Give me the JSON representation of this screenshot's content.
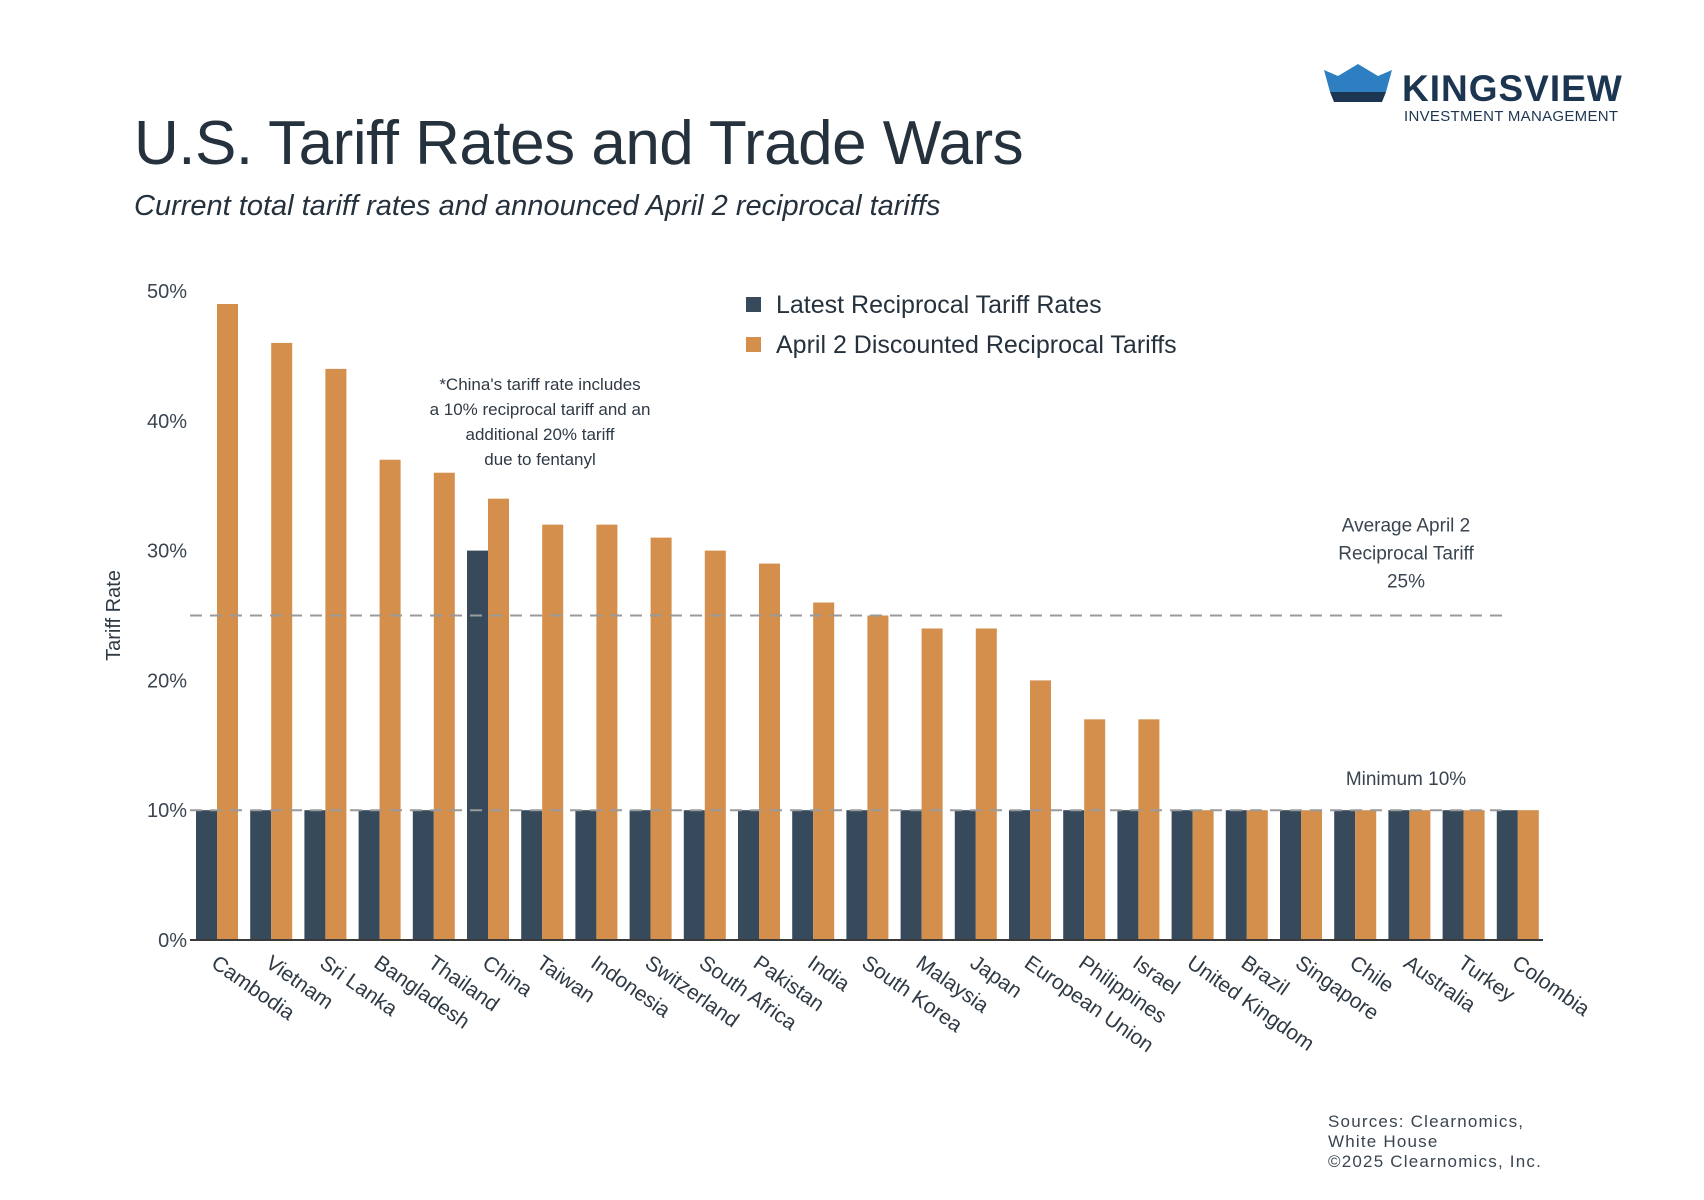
{
  "header": {
    "title": "U.S. Tariff Rates and Trade Wars",
    "subtitle": "Current total tariff rates and announced April 2 reciprocal tariffs"
  },
  "logo": {
    "name": "KINGSVIEW",
    "tagline": "INVESTMENT MANAGEMENT"
  },
  "colors": {
    "latest": "#364a5c",
    "april2": "#d38f4b",
    "axis": "#3a3a3a",
    "reference_line": "#9a9a9a"
  },
  "chart_data": {
    "type": "bar",
    "ylabel": "Tariff Rate",
    "xlabel": "",
    "ylim": [
      0,
      50
    ],
    "yticks": [
      "0%",
      "10%",
      "20%",
      "30%",
      "40%",
      "50%"
    ],
    "categories": [
      "Cambodia",
      "Vietnam",
      "Sri Lanka",
      "Bangladesh",
      "Thailand",
      "China",
      "Taiwan",
      "Indonesia",
      "Switzerland",
      "South Africa",
      "Pakistan",
      "India",
      "South Korea",
      "Malaysia",
      "Japan",
      "European Union",
      "Philippines",
      "Israel",
      "United Kingdom",
      "Brazil",
      "Singapore",
      "Chile",
      "Australia",
      "Turkey",
      "Colombia"
    ],
    "series": [
      {
        "name": "Latest Reciprocal Tariff Rates",
        "values": [
          10,
          10,
          10,
          10,
          10,
          30,
          10,
          10,
          10,
          10,
          10,
          10,
          10,
          10,
          10,
          10,
          10,
          10,
          10,
          10,
          10,
          10,
          10,
          10,
          10
        ]
      },
      {
        "name": "April 2 Discounted Reciprocal Tariffs",
        "values": [
          49,
          46,
          44,
          37,
          36,
          34,
          32,
          32,
          31,
          30,
          29,
          26,
          25,
          24,
          24,
          20,
          17,
          17,
          10,
          10,
          10,
          10,
          10,
          10,
          10
        ]
      }
    ],
    "legend_position": "top-center",
    "reference_lines": [
      {
        "value": 25,
        "label_lines": [
          "Average April 2",
          "Reciprocal Tariff",
          "25%"
        ]
      },
      {
        "value": 10,
        "label_lines": [
          "Minimum 10%"
        ]
      }
    ],
    "annotation_lines": [
      "*China's tariff rate includes",
      "a 10% reciprocal tariff and an",
      "additional 20% tariff",
      "due to fentanyl"
    ]
  },
  "sources": [
    "Sources: Clearnomics,",
    "White House",
    "©2025 Clearnomics, Inc."
  ]
}
